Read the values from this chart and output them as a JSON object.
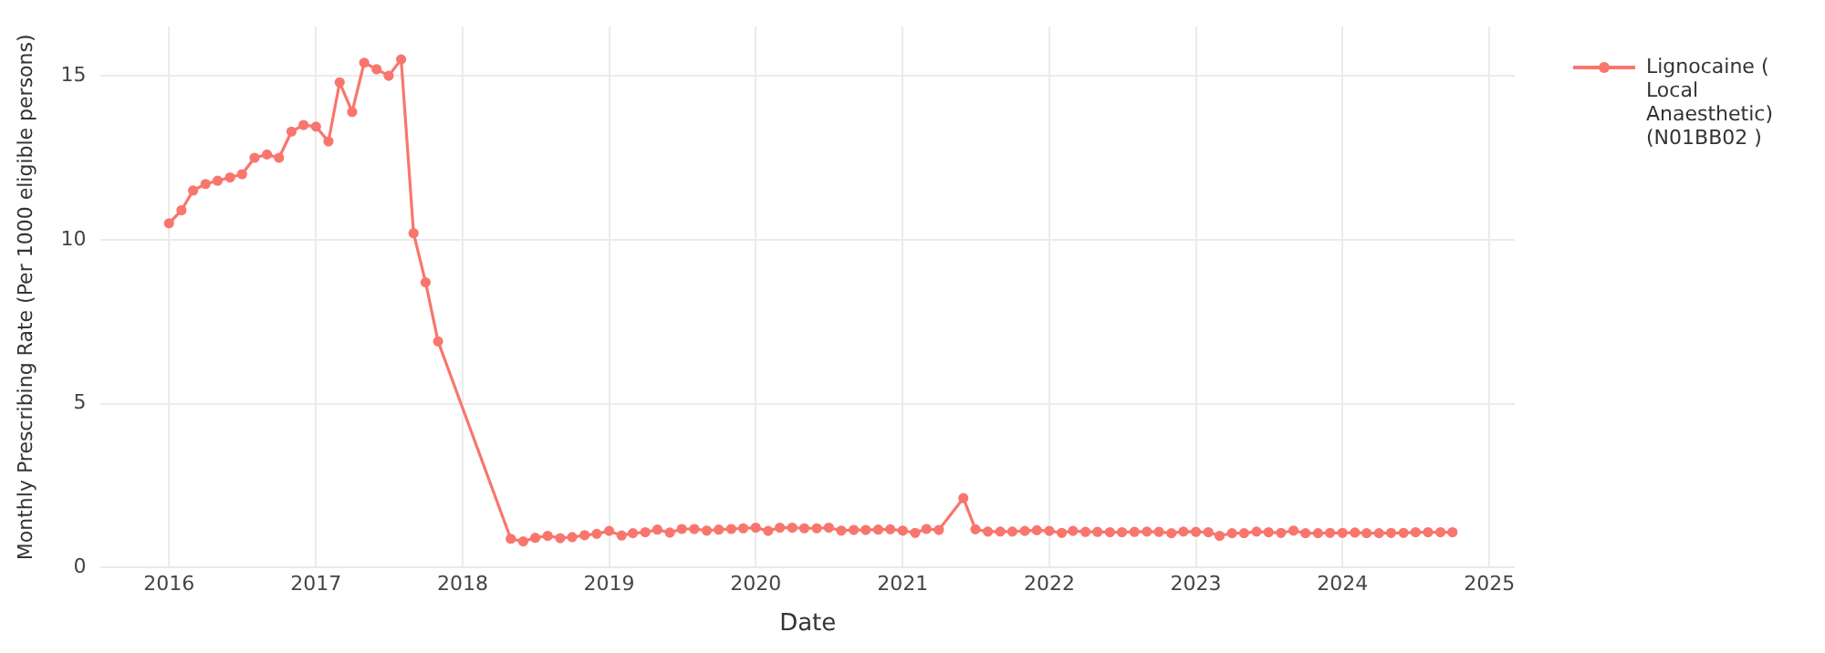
{
  "chart_data": {
    "type": "line",
    "xlabel": "Date",
    "ylabel": "Monthly Prescribing Rate (Per 1000 eligible persons)",
    "x": [
      "2016-01",
      "2016-02",
      "2016-03",
      "2016-04",
      "2016-05",
      "2016-06",
      "2016-07",
      "2016-08",
      "2016-09",
      "2016-10",
      "2016-11",
      "2016-12",
      "2017-01",
      "2017-02",
      "2017-03",
      "2017-04",
      "2017-05",
      "2017-06",
      "2017-07",
      "2017-08",
      "2017-09",
      "2017-10",
      "2017-11",
      "2018-05",
      "2018-06",
      "2018-07",
      "2018-08",
      "2018-09",
      "2018-10",
      "2018-11",
      "2018-12",
      "2019-01",
      "2019-02",
      "2019-03",
      "2019-04",
      "2019-05",
      "2019-06",
      "2019-07",
      "2019-08",
      "2019-09",
      "2019-10",
      "2019-11",
      "2019-12",
      "2020-01",
      "2020-02",
      "2020-03",
      "2020-04",
      "2020-05",
      "2020-06",
      "2020-07",
      "2020-08",
      "2020-09",
      "2020-10",
      "2020-11",
      "2020-12",
      "2021-01",
      "2021-02",
      "2021-03",
      "2021-04",
      "2021-06",
      "2021-07",
      "2021-08",
      "2021-09",
      "2021-10",
      "2021-11",
      "2021-12",
      "2022-01",
      "2022-02",
      "2022-03",
      "2022-04",
      "2022-05",
      "2022-06",
      "2022-07",
      "2022-08",
      "2022-09",
      "2022-10",
      "2022-11",
      "2022-12",
      "2023-01",
      "2023-02",
      "2023-03",
      "2023-04",
      "2023-05",
      "2023-06",
      "2023-07",
      "2023-08",
      "2023-09",
      "2023-10",
      "2023-11",
      "2023-12",
      "2024-01",
      "2024-02",
      "2024-03",
      "2024-04",
      "2024-05",
      "2024-06",
      "2024-07",
      "2024-08",
      "2024-09",
      "2024-10"
    ],
    "series": [
      {
        "name": "Lignocaine ( Local Anaesthetic) (N01BB02 )",
        "color": "#f8766d",
        "values": [
          10.5,
          10.9,
          11.5,
          11.7,
          11.8,
          11.9,
          12.0,
          12.5,
          12.6,
          12.5,
          13.3,
          13.5,
          13.45,
          13.0,
          14.8,
          13.9,
          15.4,
          15.2,
          15.0,
          15.5,
          10.2,
          8.7,
          6.9,
          0.88,
          0.8,
          0.91,
          0.97,
          0.9,
          0.93,
          0.99,
          1.03,
          1.12,
          0.98,
          1.05,
          1.08,
          1.16,
          1.07,
          1.18,
          1.18,
          1.13,
          1.16,
          1.18,
          1.2,
          1.22,
          1.12,
          1.22,
          1.22,
          1.2,
          1.2,
          1.22,
          1.13,
          1.15,
          1.15,
          1.16,
          1.17,
          1.13,
          1.06,
          1.18,
          1.15,
          2.12,
          1.17,
          1.1,
          1.1,
          1.1,
          1.12,
          1.14,
          1.12,
          1.06,
          1.12,
          1.09,
          1.09,
          1.08,
          1.08,
          1.09,
          1.1,
          1.09,
          1.05,
          1.1,
          1.09,
          1.08,
          0.97,
          1.05,
          1.05,
          1.1,
          1.08,
          1.06,
          1.13,
          1.05,
          1.05,
          1.06,
          1.06,
          1.07,
          1.05,
          1.05,
          1.06,
          1.06,
          1.08,
          1.08,
          1.08,
          1.08
        ]
      }
    ],
    "xlim": [
      "2015-07-15",
      "2025-03-05"
    ],
    "xticks": [
      "2016",
      "2017",
      "2018",
      "2019",
      "2020",
      "2021",
      "2022",
      "2023",
      "2024",
      "2025"
    ],
    "ylim": [
      0,
      16.5
    ],
    "yticks": [
      0,
      5,
      10,
      15
    ],
    "grid": true,
    "legend": "top right",
    "marker": "circle",
    "line_style": "solid"
  }
}
